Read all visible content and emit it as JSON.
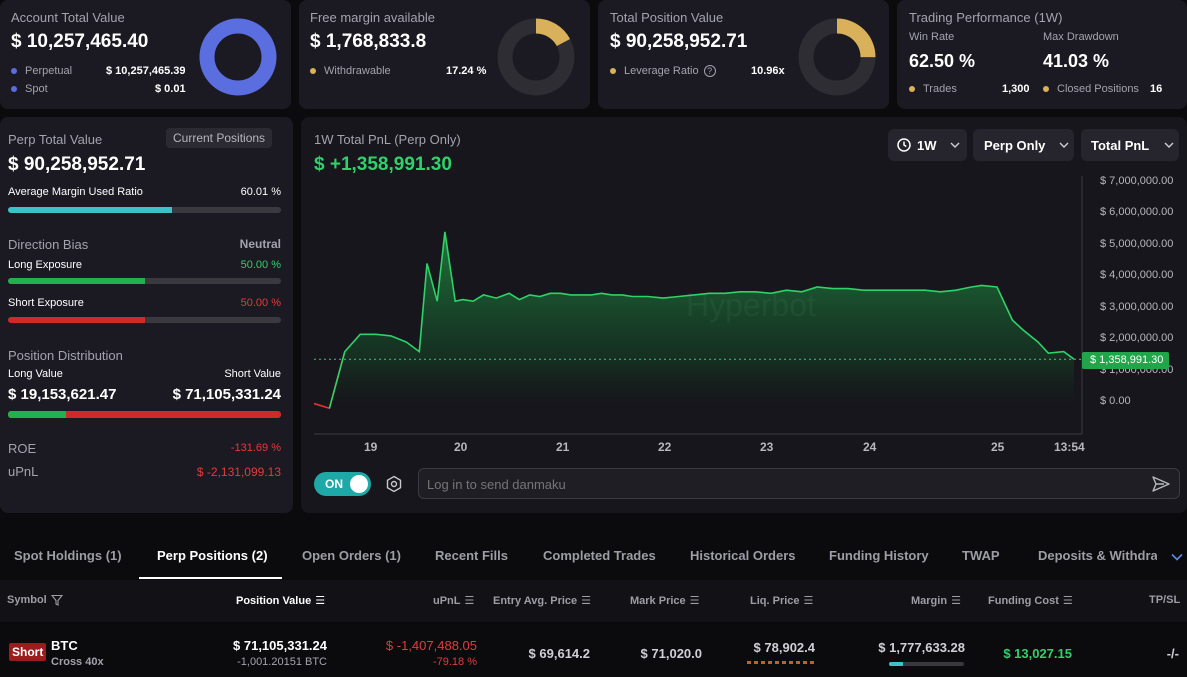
{
  "account": {
    "title": "Account Total Value",
    "value": "$ 10,257,465.40",
    "rows": [
      {
        "label": "Perpetual",
        "value": "$ 10,257,465.39"
      },
      {
        "label": "Spot",
        "value": "$ 0.01"
      }
    ],
    "donut_fraction": 1.0,
    "color": "#5b6ee0"
  },
  "margin": {
    "title": "Free margin available",
    "value": "$ 1,768,833.8",
    "row_label": "Withdrawable",
    "row_value": "17.24 %",
    "donut_fraction": 0.1724,
    "color": "#d9b15a"
  },
  "position": {
    "title": "Total Position Value",
    "value": "$ 90,258,952.71",
    "row_label": "Leverage Ratio",
    "row_value": "10.96x",
    "donut_fraction": 0.25,
    "color": "#d9b15a"
  },
  "performance": {
    "title": "Trading Performance (1W)",
    "win_rate_label": "Win Rate",
    "win_rate": "62.50 %",
    "drawdown_label": "Max Drawdown",
    "drawdown": "41.03 %",
    "trades_label": "Trades",
    "trades": "1,300",
    "closed_label": "Closed Positions",
    "closed": "16"
  },
  "perp": {
    "title": "Perp Total Value",
    "current_positions_label": "Current Positions",
    "value": "$ 90,258,952.71",
    "avg_margin_label": "Average Margin Used Ratio",
    "avg_margin_value": "60.01 %",
    "avg_margin_fraction": 0.6001,
    "direction_label": "Direction Bias",
    "direction_value": "Neutral",
    "long_exposure_label": "Long Exposure",
    "long_exposure_value": "50.00 %",
    "long_exposure_fraction": 0.5,
    "short_exposure_label": "Short Exposure",
    "short_exposure_value": "50.00 %",
    "short_exposure_fraction": 0.5,
    "distribution_label": "Position Distribution",
    "long_value_label": "Long Value",
    "short_value_label": "Short Value",
    "long_value": "$ 19,153,621.47",
    "short_value": "$ 71,105,331.24",
    "long_fraction": 0.212,
    "roe_label": "ROE",
    "roe_value": "-131.69 %",
    "upnl_label": "uPnL",
    "upnl_value": "$ -2,131,099.13"
  },
  "pnl": {
    "title": "1W Total PnL (Perp Only)",
    "value": "$ +1,358,991.30",
    "period": "1W",
    "scope": "Perp Only",
    "metric": "Total PnL",
    "watermark": "Hyperbot",
    "current_label": "$ 1,358,991.30",
    "toggle_label": "ON",
    "danmaku_placeholder": "Log in to send danmaku"
  },
  "chart_data": {
    "type": "area",
    "y_ticks": [
      "$ 7,000,000.00",
      "$ 6,000,000.00",
      "$ 5,000,000.00",
      "$ 4,000,000.00",
      "$ 3,000,000.00",
      "$ 2,000,000.00",
      "$ 1,000,000.00",
      "$ 0.00"
    ],
    "x_ticks": [
      "19",
      "20",
      "21",
      "22",
      "23",
      "24",
      "25",
      "13:54"
    ],
    "ylim": [
      0,
      7000000
    ],
    "x": [
      0,
      0.3,
      0.6,
      0.9,
      1.2,
      1.5,
      1.8,
      2.05,
      2.2,
      2.4,
      2.55,
      2.75,
      2.9,
      3.1,
      3.3,
      3.55,
      3.8,
      4.0,
      4.2,
      4.4,
      4.6,
      4.8,
      5.0,
      5.2,
      5.4,
      5.6,
      5.8,
      6.0,
      6.2,
      6.5,
      6.8,
      7.1,
      7.4,
      7.7,
      8.0,
      8.3,
      8.6,
      8.9,
      9.2,
      9.5,
      9.8,
      10.1,
      10.4,
      10.7,
      11.0,
      11.3,
      11.6,
      11.9,
      12.2,
      12.5,
      12.8,
      13.0,
      13.3,
      13.6,
      13.8,
      14.1,
      14.3,
      14.6,
      14.8
    ],
    "values": [
      -50000,
      -200000,
      1600000,
      2150000,
      2150000,
      2100000,
      1900000,
      1600000,
      4400000,
      3200000,
      5400000,
      3200000,
      3250000,
      3200000,
      3400000,
      3300000,
      3450000,
      3250000,
      3400000,
      3350000,
      3450000,
      3450000,
      3400000,
      3400000,
      3400000,
      3450000,
      3400000,
      3400000,
      3350000,
      3350000,
      3300000,
      3350000,
      3400000,
      3450000,
      3450000,
      3500000,
      3500000,
      3450000,
      3550000,
      3500000,
      3650000,
      3600000,
      3600000,
      3550000,
      3550000,
      3550000,
      3550000,
      3550000,
      3500000,
      3550000,
      3650000,
      3700000,
      3650000,
      2600000,
      2300000,
      1900000,
      1550000,
      1600000,
      1358991.3
    ]
  },
  "tabs": [
    "Spot Holdings (1)",
    "Perp Positions (2)",
    "Open Orders (1)",
    "Recent Fills",
    "Completed Trades",
    "Historical Orders",
    "Funding History",
    "TWAP",
    "Deposits & Withdraw"
  ],
  "table": {
    "headers": [
      "Symbol",
      "Position Value",
      "uPnL",
      "Entry Avg. Price",
      "Mark Price",
      "Liq. Price",
      "Margin",
      "Funding Cost",
      "TP/SL"
    ],
    "row": {
      "side": "Short",
      "symbol": "BTC",
      "mode": "Cross 40x",
      "position_value": "$ 71,105,331.24",
      "position_size": "-1,001.20151 BTC",
      "upnl": "$ -1,407,488.05",
      "upnl_pct": "-79.18 %",
      "entry_price": "$ 69,614.2",
      "mark_price": "$ 71,020.0",
      "liq_price": "$ 78,902.4",
      "margin": "$ 1,777,633.28",
      "funding_cost": "$ 13,027.15",
      "tpsl": "-/-"
    }
  }
}
